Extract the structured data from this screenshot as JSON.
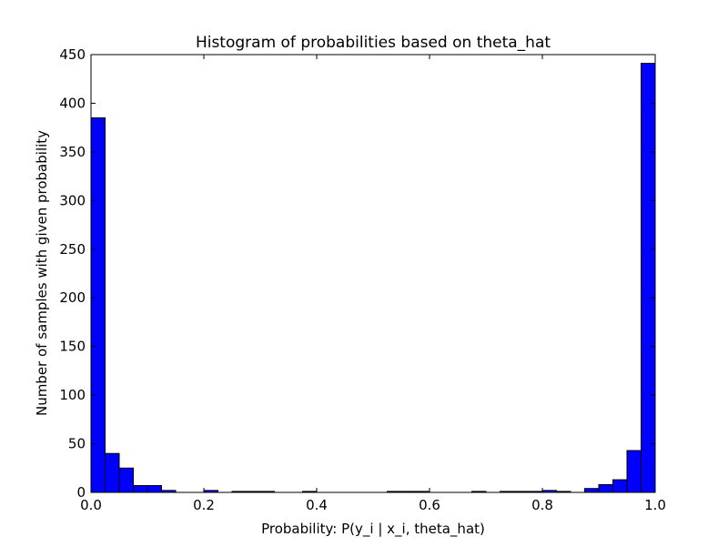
{
  "chart_data": {
    "type": "bar",
    "title": "Histogram of probabilities based on theta_hat",
    "xlabel": "Probability: P(y_i | x_i, theta_hat)",
    "ylabel": "Number of samples with given probability",
    "xlim": [
      0.0,
      1.0
    ],
    "ylim": [
      0,
      450
    ],
    "xticks": [
      0.0,
      0.2,
      0.4,
      0.6,
      0.8,
      1.0
    ],
    "xtick_labels": [
      "0.0",
      "0.2",
      "0.4",
      "0.6",
      "0.8",
      "1.0"
    ],
    "yticks": [
      0,
      50,
      100,
      150,
      200,
      250,
      300,
      350,
      400,
      450
    ],
    "ytick_labels": [
      "0",
      "50",
      "100",
      "150",
      "200",
      "250",
      "300",
      "350",
      "400",
      "450"
    ],
    "grid": false,
    "bin_width": 0.025,
    "bin_starts": [
      0.0,
      0.025,
      0.05,
      0.075,
      0.1,
      0.125,
      0.15,
      0.175,
      0.2,
      0.225,
      0.25,
      0.275,
      0.3,
      0.325,
      0.35,
      0.375,
      0.4,
      0.425,
      0.45,
      0.475,
      0.5,
      0.525,
      0.55,
      0.575,
      0.6,
      0.625,
      0.65,
      0.675,
      0.7,
      0.725,
      0.75,
      0.775,
      0.8,
      0.825,
      0.85,
      0.875,
      0.9,
      0.925,
      0.95,
      0.975
    ],
    "values": [
      385,
      40,
      25,
      7,
      7,
      2,
      0,
      0,
      2,
      0,
      1,
      1,
      1,
      0,
      0,
      1,
      0,
      0,
      0,
      0,
      0,
      1,
      1,
      1,
      0,
      0,
      0,
      1,
      0,
      1,
      1,
      1,
      2,
      1,
      0,
      4,
      8,
      13,
      43,
      441
    ],
    "bar_color": "#0000ff",
    "edge_color": "#000000"
  }
}
